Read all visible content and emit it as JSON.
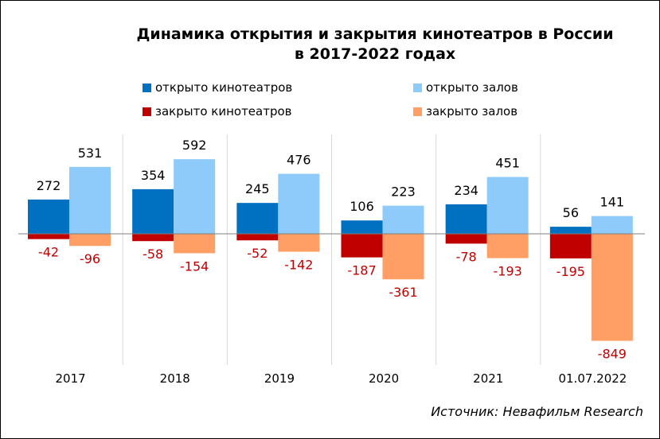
{
  "title_line1": "Динамика открытия и закрытия кинотеатров в России",
  "title_line2": "в 2017-2022 годах",
  "source": "Источник: Невафильм Research",
  "colors": {
    "opened_cinemas": "#0070c0",
    "opened_halls": "#8ecbfb",
    "closed_cinemas": "#c00000",
    "closed_halls": "#ff9e65",
    "negative_label": "#c00000"
  },
  "chart_data": {
    "type": "bar",
    "title": "Динамика открытия и закрытия кинотеатров в России в 2017-2022 годах",
    "categories": [
      "2017",
      "2018",
      "2019",
      "2020",
      "2021",
      "01.07.2022"
    ],
    "ylim": [
      -900,
      620
    ],
    "grid": false,
    "legend_position": "top",
    "series": [
      {
        "name": "открыто кинотеатров",
        "values": [
          272,
          354,
          245,
          106,
          234,
          56
        ]
      },
      {
        "name": "открыто залов",
        "values": [
          531,
          592,
          476,
          223,
          451,
          141
        ]
      },
      {
        "name": "закрыто кинотеатров",
        "values": [
          -42,
          -58,
          -52,
          -187,
          -78,
          -195
        ]
      },
      {
        "name": "закрыто залов",
        "values": [
          -96,
          -154,
          -142,
          -361,
          -193,
          -849
        ]
      }
    ]
  }
}
